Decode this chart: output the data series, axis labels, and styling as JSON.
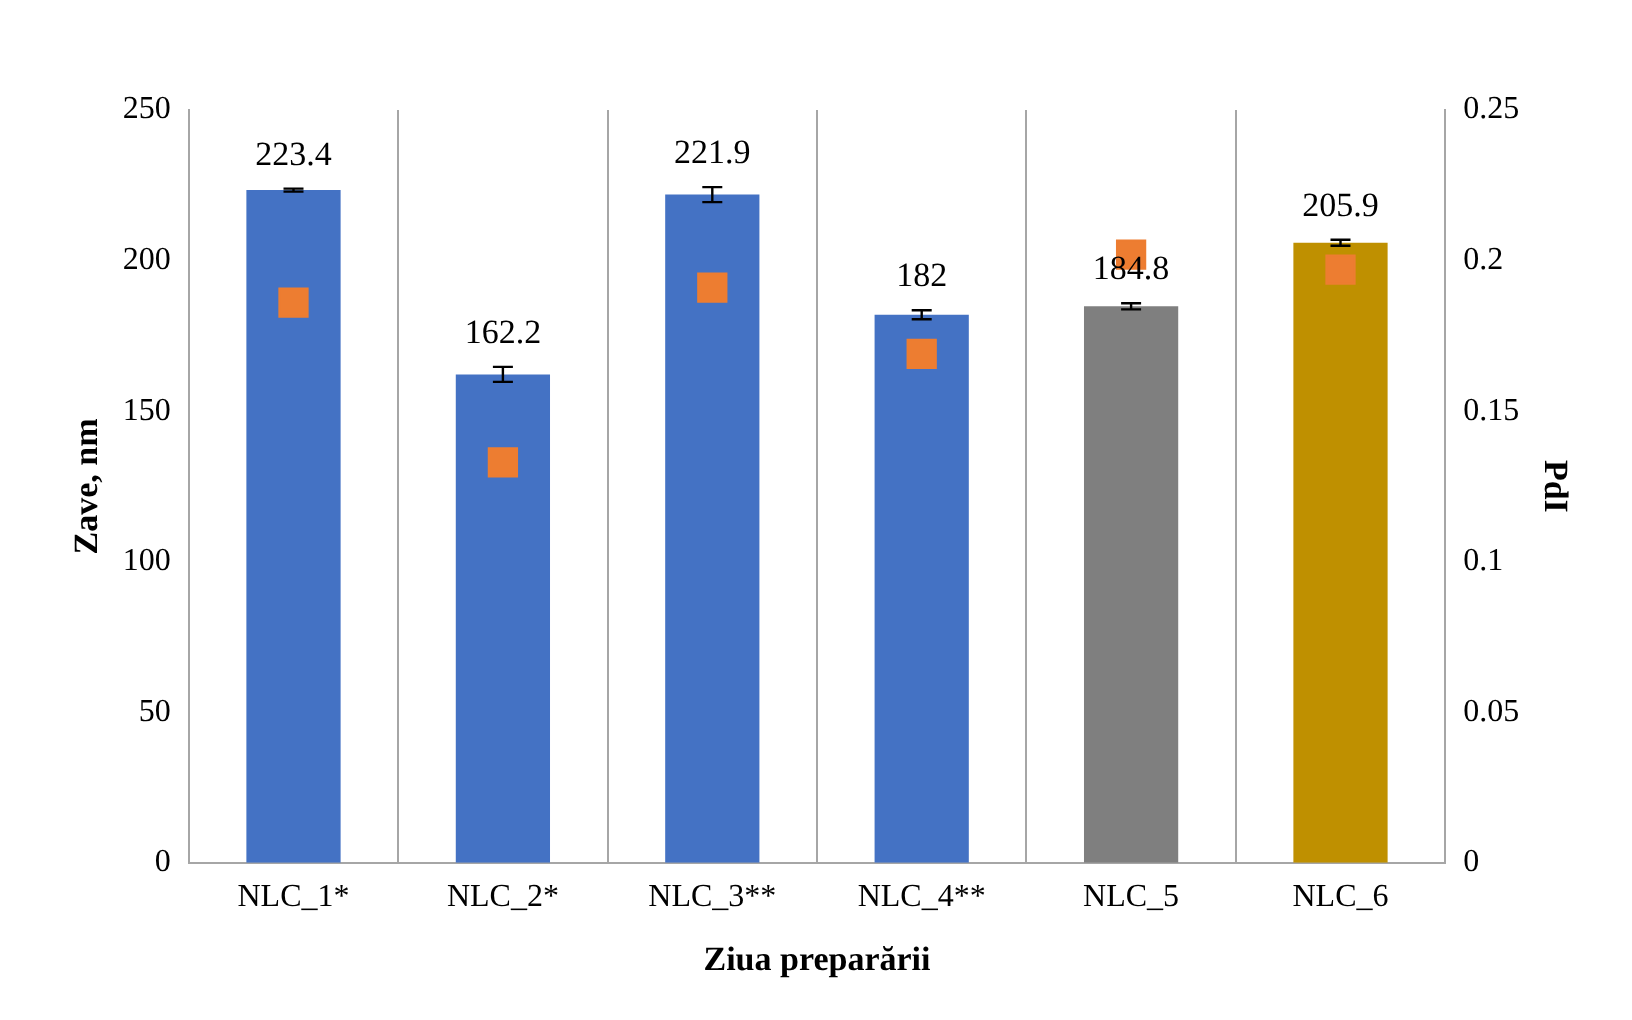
{
  "chart_data": {
    "type": "bar",
    "xlabel": "Ziua preparării",
    "ylabel": "Zave, nm",
    "y2label": "PdI",
    "categories": [
      "NLC_1*",
      "NLC_2*",
      "NLC_3**",
      "NLC_4**",
      "NLC_5",
      "NLC_6"
    ],
    "series": [
      {
        "colors": [
          "#4472c4",
          "#4472c4",
          "#4472c4",
          "#4472c4",
          "#7f7f7f",
          "#bf9000"
        ],
        "values": [
          223.4,
          162.2,
          221.9,
          182,
          184.8,
          205.9
        ],
        "errors": [
          0.5,
          2.5,
          2.5,
          1.5,
          1,
          1
        ],
        "value_labels": [
          "223.4",
          "162.2",
          "221.9",
          "182",
          "184.8",
          "205.9"
        ]
      },
      {
        "type": "scatter",
        "axis": "y2",
        "color": "#ed7d31",
        "marker": "square",
        "x": [
          "NLC_1*",
          "NLC_2*",
          "NLC_3**",
          "NLC_4**",
          "NLC_5",
          "NLC_6"
        ],
        "values": [
          0.186,
          0.133,
          0.191,
          0.169,
          0.202,
          0.197
        ]
      }
    ],
    "ylim": [
      0,
      250
    ],
    "yticks": [
      0,
      50,
      100,
      150,
      200,
      250
    ],
    "y2lim": [
      0,
      0.25
    ],
    "y2ticks": [
      0,
      0.05,
      0.1,
      0.15,
      0.2,
      0.25
    ],
    "grid": "x",
    "legend": false
  }
}
